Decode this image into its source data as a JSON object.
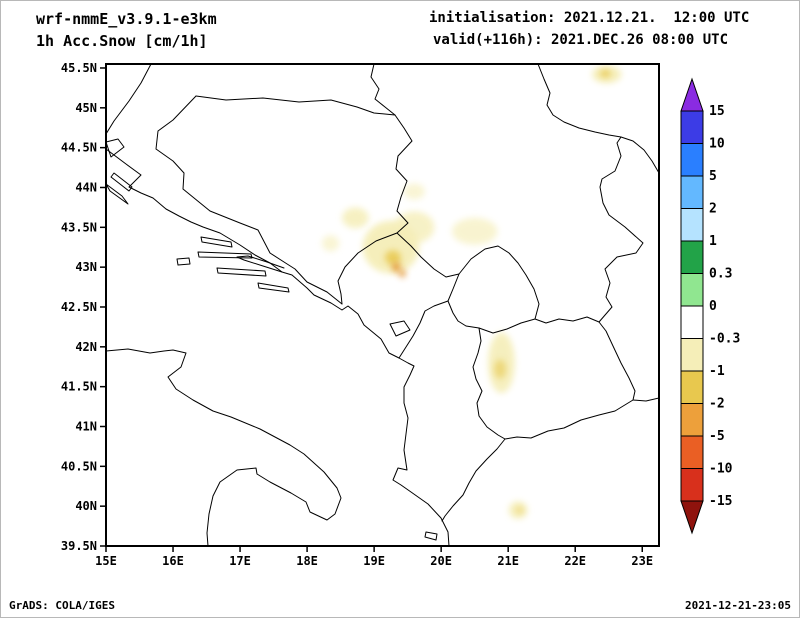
{
  "header": {
    "model": "wrf-nmmE_v3.9.1-e3km",
    "field": "1h Acc.Snow [cm/1h]",
    "init": "initialisation: 2021.12.21.  12:00 UTC",
    "valid": "valid(+116h): 2021.DEC.26 08:00 UTC"
  },
  "footer": {
    "left": "GrADS: COLA/IGES",
    "right": "2021-12-21-23:05"
  },
  "chart_data": {
    "type": "heatmap",
    "title": "1h Acc.Snow [cm/1h]",
    "gridlines": false,
    "x_axis": {
      "ticks": [
        "15E",
        "16E",
        "17E",
        "18E",
        "19E",
        "20E",
        "21E",
        "22E",
        "23E"
      ],
      "range_deg": [
        15,
        23.25
      ],
      "unit": "degrees East"
    },
    "y_axis": {
      "ticks": [
        "39.5N",
        "40N",
        "40.5N",
        "41N",
        "41.5N",
        "42N",
        "42.5N",
        "43N",
        "43.5N",
        "44N",
        "44.5N",
        "45N",
        "45.5N"
      ],
      "range_deg": [
        39.5,
        45.55
      ],
      "unit": "degrees North"
    },
    "colorbar": {
      "labels": [
        "15",
        "10",
        "5",
        "2",
        "1",
        "0.3",
        "0",
        "-0.3",
        "-1",
        "-2",
        "-5",
        "-10",
        "-15"
      ],
      "arrow_high_color": "#8a2be2",
      "arrow_low_color": "#8f130d",
      "segment_colors_top_to_bottom": [
        "#3c3ce6",
        "#2a7fff",
        "#63b8ff",
        "#b5e3ff",
        "#22a348",
        "#90e690",
        "#ffffff",
        "#f5eeb8",
        "#e8c84e",
        "#eda03b",
        "#ea5f24",
        "#d8301c"
      ],
      "segment_bands_top_to_bottom": [
        "10 to 15",
        "5 to 10",
        "2 to 5",
        "1 to 2",
        "0.3 to 1",
        "0 to 0.3",
        "-0.3 to 0",
        "-1 to -0.3",
        "-2 to -1",
        "-5 to -2",
        "-10 to -5",
        "-15 to -10"
      ]
    },
    "shaded_regions": [
      {
        "lon": 22.47,
        "lat": 45.42,
        "rlon": 0.22,
        "rlat": 0.11,
        "color": "#f5eeb8",
        "opacity": 0.95,
        "band": "-0.3 to -1"
      },
      {
        "lon": 22.45,
        "lat": 45.43,
        "rlon": 0.08,
        "rlat": 0.05,
        "color": "#e8c84e",
        "opacity": 0.8,
        "band": "-1 to -2"
      },
      {
        "lon": 18.72,
        "lat": 43.62,
        "rlon": 0.2,
        "rlat": 0.13,
        "color": "#f5eeb8",
        "opacity": 0.85,
        "band": "-0.3 to -1"
      },
      {
        "lon": 19.6,
        "lat": 43.95,
        "rlon": 0.16,
        "rlat": 0.1,
        "color": "#f5eeb8",
        "opacity": 0.6,
        "band": "-0.3 to -1"
      },
      {
        "lon": 19.25,
        "lat": 43.25,
        "rlon": 0.42,
        "rlat": 0.33,
        "color": "#f5eeb8",
        "opacity": 0.95,
        "band": "-0.3 to -1"
      },
      {
        "lon": 19.6,
        "lat": 43.5,
        "rlon": 0.3,
        "rlat": 0.2,
        "color": "#f5eeb8",
        "opacity": 0.8,
        "band": "-0.3 to -1"
      },
      {
        "lon": 18.35,
        "lat": 43.3,
        "rlon": 0.13,
        "rlat": 0.1,
        "color": "#f5eeb8",
        "opacity": 0.6,
        "band": "-0.3 to -1"
      },
      {
        "lon": 20.5,
        "lat": 43.45,
        "rlon": 0.34,
        "rlat": 0.17,
        "color": "#f5eeb8",
        "opacity": 0.65,
        "band": "-0.3 to -1"
      },
      {
        "lon": 19.28,
        "lat": 43.12,
        "rlon": 0.12,
        "rlat": 0.09,
        "color": "#e8c84e",
        "opacity": 0.85,
        "band": "-1 to -2"
      },
      {
        "lon": 19.33,
        "lat": 43.0,
        "rlon": 0.06,
        "rlat": 0.06,
        "color": "#e2902f",
        "opacity": 0.9,
        "band": "-2 to -5"
      },
      {
        "lon": 19.42,
        "lat": 42.92,
        "rlon": 0.05,
        "rlat": 0.05,
        "color": "#e2902f",
        "opacity": 0.85,
        "band": "-2 to -5"
      },
      {
        "lon": 20.9,
        "lat": 41.8,
        "rlon": 0.2,
        "rlat": 0.38,
        "color": "#f5eeb8",
        "opacity": 0.9,
        "band": "-0.3 to -1"
      },
      {
        "lon": 20.88,
        "lat": 41.72,
        "rlon": 0.09,
        "rlat": 0.12,
        "color": "#e8c84e",
        "opacity": 0.6,
        "band": "-1 to -2"
      },
      {
        "lon": 21.15,
        "lat": 39.95,
        "rlon": 0.14,
        "rlat": 0.11,
        "color": "#f5eeb8",
        "opacity": 0.9,
        "band": "-0.3 to -1"
      },
      {
        "lon": 21.17,
        "lat": 39.95,
        "rlon": 0.05,
        "rlat": 0.04,
        "color": "#e8c84e",
        "opacity": 0.6,
        "band": "-1 to -2"
      }
    ]
  }
}
